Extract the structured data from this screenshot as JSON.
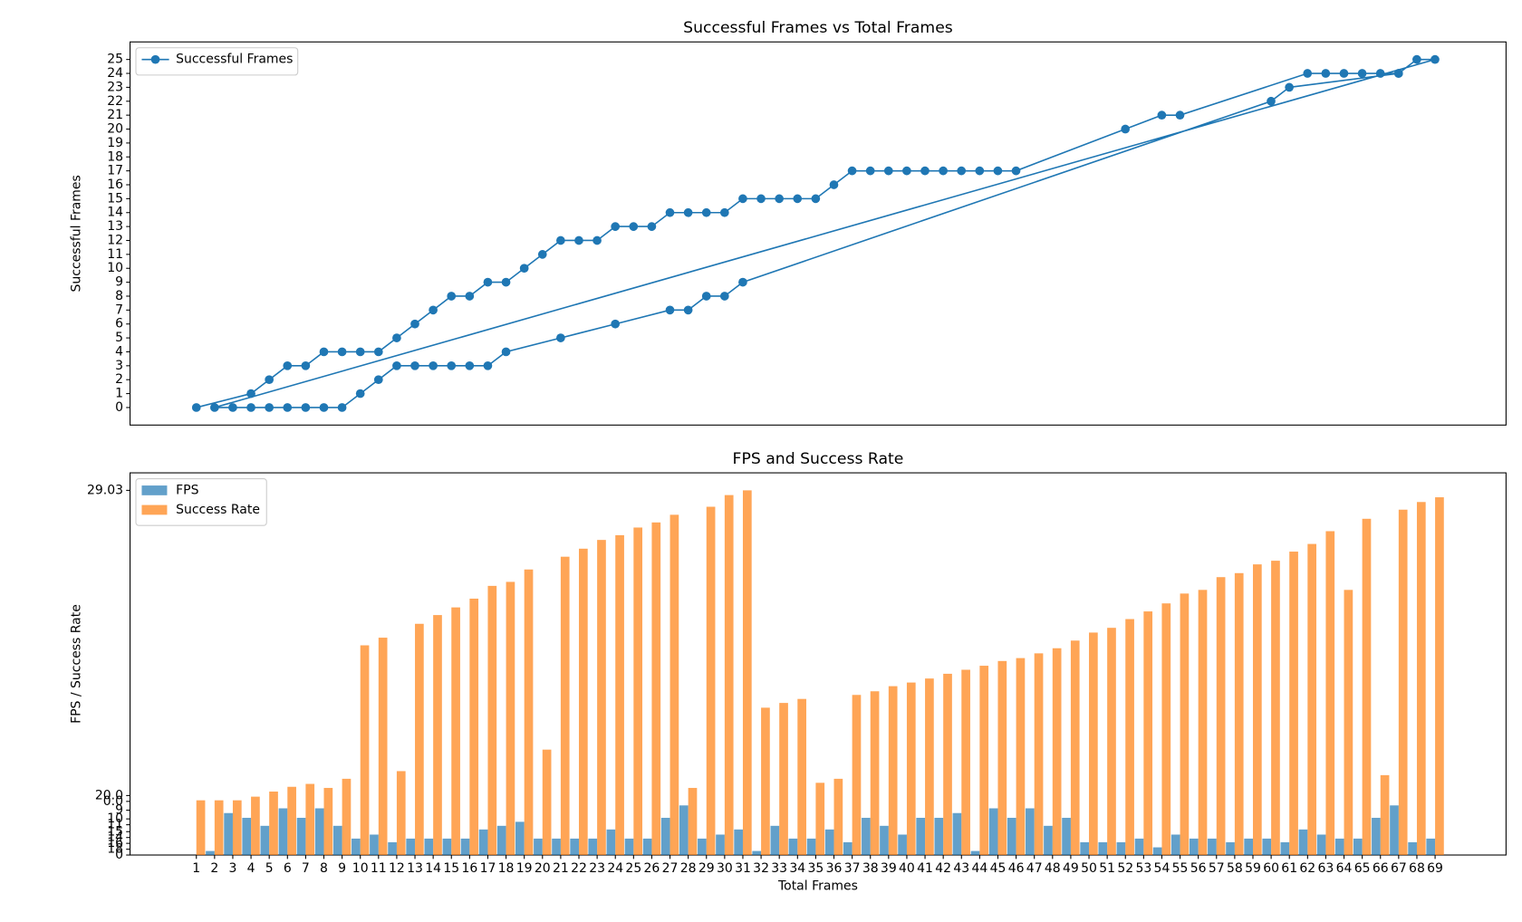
{
  "chart_data": [
    {
      "type": "line",
      "title": "Successful Frames vs Total Frames",
      "ylabel": "Successful Frames",
      "x": [
        1,
        4,
        5,
        6,
        7,
        8,
        9,
        10,
        11,
        12,
        13,
        14,
        15,
        16,
        17,
        18,
        19,
        20,
        21,
        22,
        23,
        24,
        25,
        26,
        27,
        28,
        29,
        30,
        31,
        32,
        33,
        34,
        35,
        36,
        37,
        38,
        39,
        40,
        41,
        42,
        43,
        44,
        45,
        46,
        52,
        54,
        55,
        62,
        63,
        64,
        65,
        66,
        67,
        68,
        69,
        2,
        3,
        4,
        5,
        6,
        7,
        8,
        9,
        10,
        11,
        12,
        13,
        14,
        15,
        16,
        17,
        18,
        21,
        24,
        27,
        28,
        29,
        30,
        31,
        60,
        61,
        67
      ],
      "series": [
        {
          "name": "Successful Frames",
          "color": "#1f77b4",
          "values": [
            0,
            1,
            2,
            3,
            3,
            4,
            4,
            4,
            4,
            5,
            6,
            7,
            8,
            8,
            9,
            9,
            10,
            11,
            12,
            12,
            12,
            13,
            13,
            13,
            14,
            14,
            14,
            14,
            15,
            15,
            15,
            15,
            15,
            16,
            17,
            17,
            17,
            17,
            17,
            17,
            17,
            17,
            17,
            17,
            20,
            21,
            21,
            24,
            24,
            24,
            24,
            24,
            24,
            25,
            25,
            0,
            0,
            0,
            0,
            0,
            0,
            0,
            0,
            1,
            2,
            3,
            3,
            3,
            3,
            3,
            3,
            4,
            5,
            6,
            7,
            7,
            8,
            8,
            9,
            22,
            23,
            24
          ]
        }
      ],
      "xlim": [
        -2.64,
        72.9
      ],
      "ylim": [
        -1.26,
        26.26
      ],
      "yticks": [
        0,
        1,
        2,
        3,
        4,
        5,
        6,
        7,
        8,
        9,
        10,
        11,
        12,
        13,
        14,
        15,
        16,
        17,
        18,
        19,
        20,
        21,
        22,
        23,
        24,
        25
      ],
      "legend": "upper left"
    },
    {
      "type": "bar",
      "title": "FPS and Success Rate",
      "xlabel": "Total Frames",
      "ylabel": "FPS / Success Rate",
      "categories": [
        "1",
        "2",
        "3",
        "4",
        "5",
        "6",
        "7",
        "8",
        "9",
        "10",
        "11",
        "12",
        "13",
        "14",
        "15",
        "16",
        "17",
        "18",
        "19",
        "20",
        "21",
        "22",
        "23",
        "24",
        "25",
        "26",
        "27",
        "28",
        "29",
        "30",
        "31",
        "32",
        "33",
        "34",
        "35",
        "36",
        "37",
        "38",
        "39",
        "40",
        "41",
        "42",
        "43",
        "44",
        "45",
        "46",
        "47",
        "48",
        "49",
        "50",
        "51",
        "52",
        "53",
        "54",
        "55",
        "56",
        "57",
        "58",
        "59",
        "60",
        "61",
        "62",
        "63",
        "64",
        "65",
        "66",
        "67",
        "68",
        "69"
      ],
      "series": [
        {
          "name": "FPS",
          "color": "#1f77b4",
          "values": [
            0,
            1.1,
            11.5,
            10.2,
            8.0,
            12.8,
            10.2,
            12.8,
            8.0,
            4.5,
            5.6,
            3.5,
            4.5,
            4.5,
            4.5,
            4.5,
            7.0,
            8.0,
            9.1,
            4.5,
            4.5,
            4.5,
            4.5,
            7.0,
            4.5,
            4.5,
            10.2,
            13.6,
            4.5,
            5.6,
            7.0,
            1.1,
            8.0,
            4.5,
            4.5,
            7.0,
            3.5,
            10.2,
            8.0,
            5.6,
            10.2,
            10.2,
            11.5,
            1.1,
            12.8,
            10.2,
            12.8,
            8.0,
            10.2,
            3.5,
            3.5,
            3.5,
            4.5,
            2.1,
            5.6,
            4.5,
            4.5,
            3.5,
            4.5,
            4.5,
            3.5,
            7.0,
            5.6,
            4.5,
            4.5,
            10.2,
            13.6,
            3.5,
            4.5
          ]
        },
        {
          "name": "Success Rate",
          "color": "#ff7f0e",
          "values": [
            15.0,
            15.0,
            15.0,
            16.0,
            17.4,
            18.7,
            19.5,
            18.4,
            20.9,
            57.5,
            59.6,
            23.0,
            63.4,
            65.8,
            67.9,
            70.3,
            73.8,
            74.9,
            78.3,
            28.9,
            81.8,
            84.0,
            86.4,
            87.7,
            89.8,
            91.2,
            93.3,
            18.4,
            95.5,
            98.7,
            100.0,
            40.4,
            41.7,
            42.8,
            19.8,
            20.9,
            43.9,
            44.9,
            46.3,
            47.3,
            48.4,
            49.7,
            50.8,
            51.9,
            53.2,
            54.0,
            55.3,
            56.7,
            58.8,
            61.0,
            62.3,
            64.7,
            66.8,
            69.0,
            71.7,
            72.7,
            76.2,
            77.3,
            79.7,
            80.7,
            83.2,
            85.3,
            88.8,
            72.7,
            92.2,
            21.9,
            94.7,
            96.8,
            98.1
          ]
        }
      ],
      "ylim": [
        0,
        104.8
      ],
      "yticks": [
        0,
        {
          "value": 1.6,
          "label": "18"
        },
        {
          "value": 3.2,
          "label": "16"
        },
        {
          "value": 4.8,
          "label": "14"
        },
        {
          "value": 6.4,
          "label": "15"
        },
        {
          "value": 8.3,
          "label": "11"
        },
        {
          "value": 9.9,
          "label": "10"
        },
        {
          "value": 12.3,
          "label": "9"
        },
        {
          "value": 14.7,
          "label": "0.0"
        },
        {
          "value": 16.3,
          "label": "20.0"
        },
        {
          "value": 100,
          "label": "29.03"
        }
      ],
      "legend": "upper left"
    }
  ]
}
